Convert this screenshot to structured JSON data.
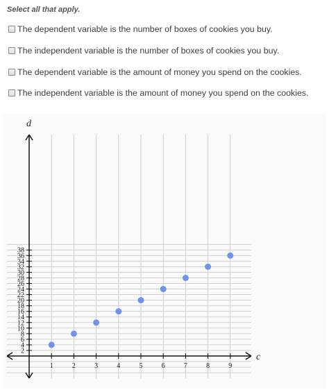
{
  "question": {
    "prompt": "Select all that apply.",
    "options": [
      {
        "label": "The dependent variable is the number of boxes of cookies you buy.",
        "checked": false
      },
      {
        "label": "The independent variable is the number of boxes of cookies you buy.",
        "checked": false
      },
      {
        "label": "The dependent variable is the amount of money you spend on the cookies.",
        "checked": false
      },
      {
        "label": "The independent variable is the amount of money you spend on the cookies.",
        "checked": false
      }
    ]
  },
  "chart_data": {
    "type": "scatter",
    "xlabel": "c",
    "ylabel": "d",
    "x": [
      1,
      2,
      3,
      4,
      5,
      6,
      7,
      8,
      9
    ],
    "y": [
      4,
      8,
      12,
      16,
      20,
      24,
      28,
      32,
      36
    ],
    "xlim": [
      -1,
      10
    ],
    "ylim": [
      -2,
      40
    ],
    "x_ticks": [
      1,
      2,
      3,
      4,
      5,
      6,
      7,
      8,
      9
    ],
    "y_ticks": [
      2,
      4,
      6,
      8,
      10,
      12,
      14,
      16,
      18,
      20,
      22,
      24,
      26,
      28,
      30,
      32,
      34,
      36,
      38
    ],
    "grid": true,
    "point_color": "#6b97e6"
  }
}
